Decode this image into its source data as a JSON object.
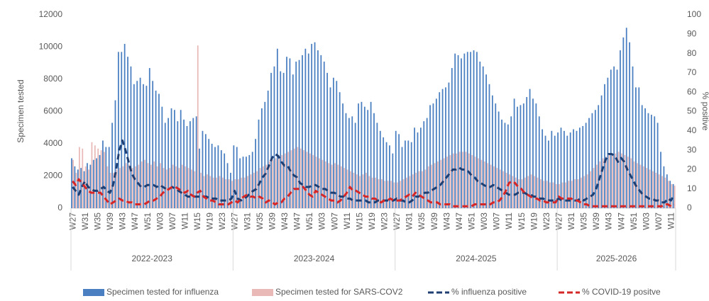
{
  "chart_data": {
    "type": "bar-line",
    "y_label": "Specimen tested",
    "y2_label": "% positive",
    "ylim": [
      0,
      12000
    ],
    "yticks": [
      0,
      2000,
      4000,
      6000,
      8000,
      10000,
      12000
    ],
    "y2lim": [
      0,
      100
    ],
    "y2ticks": [
      0,
      10,
      20,
      30,
      40,
      50,
      60,
      70,
      80,
      90,
      100
    ],
    "legend": "bottom",
    "groups": [
      "2022-2023",
      "2023-2024",
      "2024-2025",
      "2025-2026"
    ],
    "categories": [
      "W27",
      null,
      null,
      null,
      "W31",
      null,
      null,
      null,
      "W35",
      null,
      null,
      null,
      "W39",
      null,
      null,
      null,
      "W43",
      null,
      null,
      null,
      "W47",
      null,
      null,
      null,
      "W51",
      null,
      null,
      null,
      "W03",
      null,
      null,
      null,
      "W07",
      null,
      null,
      null,
      "W11",
      null,
      null,
      null,
      "W15",
      null,
      null,
      null,
      "W19",
      null,
      null,
      null,
      "W23",
      null,
      null,
      null,
      "W27",
      null,
      null,
      null,
      "W31",
      null,
      null,
      null,
      "W35",
      null,
      null,
      null,
      "W39",
      null,
      null,
      null,
      "W43",
      null,
      null,
      null,
      "W47",
      null,
      null,
      null,
      "W51",
      null,
      null,
      null,
      "W03",
      null,
      null,
      null,
      "W07",
      null,
      null,
      null,
      "W11",
      null,
      null,
      null,
      "W15",
      null,
      null,
      null,
      "W19",
      null,
      null,
      null,
      "W23",
      null,
      null,
      null,
      "W27",
      null,
      null,
      null,
      "W31",
      null,
      null,
      null,
      "W35",
      null,
      null,
      null,
      "W39",
      null,
      null,
      null,
      "W43",
      null,
      null,
      null,
      "W47",
      null,
      null,
      null,
      "W51",
      null,
      null,
      null,
      "W03",
      null,
      null,
      null,
      "W07",
      null,
      null,
      null,
      "W11",
      null,
      null,
      null,
      "W15",
      null,
      null,
      null,
      "W19",
      null,
      null,
      null,
      "W23",
      null,
      null,
      null,
      "W27",
      null,
      null,
      null,
      "W31",
      null,
      null,
      null,
      "W35",
      null,
      null,
      null,
      "W39",
      null,
      null,
      null,
      "W43",
      null,
      null,
      null,
      "W47",
      null,
      null,
      null,
      "W51",
      null,
      null,
      null,
      "W03",
      null,
      null,
      null,
      "W07",
      null,
      null,
      null,
      "W11",
      null
    ],
    "series": [
      {
        "name": "Specimen tested for influenza",
        "kind": "bar",
        "color": "#4a7fc1",
        "values": [
          3100,
          2600,
          2400,
          2500,
          2300,
          2800,
          2700,
          3000,
          3100,
          3300,
          4200,
          3800,
          3800,
          5300,
          6700,
          9700,
          9700,
          10200,
          9400,
          8800,
          7700,
          7900,
          8100,
          7700,
          7600,
          8700,
          7900,
          7300,
          7100,
          6300,
          5300,
          5600,
          6200,
          6100,
          5400,
          6100,
          5500,
          5100,
          5400,
          5600,
          5700,
          3700,
          4800,
          4600,
          4300,
          4000,
          3800,
          3900,
          3600,
          3400,
          2800,
          2200,
          3900,
          3800,
          3100,
          3200,
          3200,
          3300,
          3500,
          4300,
          5500,
          6200,
          6600,
          7300,
          8400,
          8800,
          9900,
          8500,
          8400,
          9400,
          9300,
          8300,
          9100,
          9200,
          9500,
          9900,
          9600,
          10200,
          10300,
          9800,
          9500,
          9100,
          8400,
          7500,
          8100,
          7900,
          7200,
          6500,
          5900,
          5600,
          5700,
          5300,
          6500,
          6600,
          6300,
          6100,
          6600,
          5900,
          5300,
          4800,
          4400,
          4100,
          3900,
          3400,
          4800,
          4600,
          3800,
          4200,
          4200,
          4100,
          5000,
          4700,
          5000,
          5400,
          5600,
          6400,
          6500,
          6800,
          7200,
          7400,
          7500,
          7800,
          8700,
          9600,
          9500,
          9300,
          9600,
          9700,
          9700,
          9800,
          9700,
          9100,
          8800,
          8300,
          7700,
          7000,
          6500,
          6000,
          5500,
          5300,
          5200,
          5700,
          6800,
          6300,
          6400,
          6500,
          6900,
          7400,
          6800,
          6500,
          5700,
          4900,
          4500,
          4200,
          4800,
          4500,
          4700,
          5000,
          4800,
          4500,
          4700,
          4900,
          4800,
          5000,
          5100,
          5300,
          5600,
          5900,
          6100,
          6400,
          7000,
          7700,
          8100,
          8600,
          8800,
          8600,
          9800,
          10600,
          11200,
          10300,
          8800,
          7500,
          7500,
          6400,
          6200,
          5900,
          5800,
          5700,
          5300,
          3500,
          2600,
          2100,
          1700,
          1500
        ]
      },
      {
        "name": "Specimen tested for SARS-COV2",
        "kind": "bar",
        "color": "#e8b9b7",
        "values": [
          3000,
          2200,
          3800,
          3700,
          2600,
          2400,
          4100,
          3900,
          3700,
          3600,
          3500,
          2600,
          2200,
          2200,
          2400,
          2500,
          2600,
          2800,
          2700,
          2500,
          2600,
          2700,
          2900,
          3000,
          2800,
          2700,
          2900,
          2600,
          2800,
          2500,
          2400,
          2500,
          2700,
          2600,
          2500,
          2700,
          2600,
          2500,
          2400,
          2300,
          10100,
          2200,
          2000,
          2100,
          2000,
          1900,
          1900,
          2000,
          1900,
          1800,
          1800,
          1700,
          1800,
          1800,
          1900,
          1900,
          2000,
          2100,
          2200,
          2300,
          2500,
          2600,
          2700,
          2900,
          3000,
          3100,
          3200,
          3300,
          3400,
          3500,
          3600,
          3700,
          3800,
          3700,
          3600,
          3500,
          3400,
          3300,
          3200,
          3100,
          3000,
          2900,
          2800,
          2700,
          2800,
          2700,
          2600,
          2500,
          2400,
          2300,
          2200,
          2100,
          2000,
          2100,
          2200,
          2000,
          1900,
          1900,
          1800,
          1800,
          1700,
          1700,
          1700,
          1600,
          1600,
          1700,
          1800,
          1900,
          2000,
          2100,
          2200,
          2300,
          2300,
          2400,
          2600,
          2700,
          2800,
          2900,
          3000,
          3100,
          3200,
          3300,
          3400,
          3400,
          3500,
          3500,
          3500,
          3400,
          3300,
          3200,
          3100,
          3000,
          2900,
          2800,
          2700,
          2600,
          2500,
          2400,
          2300,
          2200,
          2100,
          2000,
          1900,
          1800,
          1800,
          1900,
          2000,
          2100,
          2000,
          1900,
          1800,
          1700,
          1700,
          1600,
          1600,
          1500,
          1500,
          1600,
          1600,
          1700,
          1700,
          1800,
          1800,
          1900,
          2000,
          2100,
          2300,
          2500,
          2700,
          2900,
          3100,
          3200,
          3300,
          3400,
          3400,
          3500,
          3400,
          3300,
          3200,
          3100,
          2900,
          2800,
          2700,
          2600,
          2500,
          2400,
          2300,
          2200,
          2100,
          2000,
          1900,
          1700,
          1500,
          1400
        ]
      },
      {
        "name": "% influenza positive",
        "kind": "line",
        "axis": "y2",
        "color": "#1f3f73",
        "values": [
          11,
          9,
          7,
          11,
          14,
          11,
          10,
          9,
          9,
          10,
          11,
          9,
          8,
          12,
          20,
          30,
          35,
          30,
          24,
          18,
          15,
          13,
          11,
          11,
          12,
          12,
          12,
          11,
          12,
          11,
          10,
          10,
          11,
          10,
          9,
          8,
          7,
          6,
          6,
          6,
          6,
          6,
          6,
          6,
          5,
          5,
          5,
          4,
          4,
          4,
          4,
          5,
          9,
          5,
          4,
          5,
          6,
          8,
          9,
          10,
          13,
          16,
          18,
          22,
          26,
          28,
          27,
          24,
          22,
          22,
          19,
          17,
          16,
          13,
          12,
          11,
          11,
          12,
          12,
          11,
          10,
          10,
          9,
          8,
          8,
          7,
          6,
          6,
          5,
          5,
          4,
          4,
          4,
          4,
          4,
          3,
          3,
          3,
          4,
          4,
          4,
          4,
          4,
          4,
          5,
          4,
          4,
          3,
          3,
          4,
          6,
          6,
          7,
          8,
          8,
          9,
          10,
          11,
          12,
          14,
          16,
          18,
          20,
          20,
          21,
          20,
          20,
          19,
          17,
          16,
          14,
          13,
          12,
          11,
          11,
          12,
          11,
          10,
          9,
          8,
          7,
          7,
          7,
          8,
          8,
          8,
          7,
          7,
          6,
          6,
          5,
          5,
          4,
          4,
          4,
          4,
          5,
          4,
          4,
          4,
          4,
          4,
          4,
          5,
          4,
          5,
          6,
          7,
          10,
          15,
          20,
          25,
          28,
          28,
          27,
          24,
          26,
          24,
          20,
          17,
          14,
          11,
          9,
          7,
          6,
          5,
          5,
          4,
          4,
          3,
          3,
          5,
          4,
          7
        ]
      },
      {
        "name": "% COVID-19 positve",
        "kind": "line",
        "axis": "y2",
        "color": "#d62728",
        "values": [
          14,
          12,
          15,
          13,
          11,
          9,
          8,
          8,
          8,
          8,
          6,
          4,
          2,
          3,
          4,
          5,
          4,
          4,
          3,
          3,
          2,
          2,
          2,
          2,
          3,
          4,
          4,
          5,
          6,
          8,
          9,
          10,
          11,
          11,
          10,
          9,
          8,
          9,
          7,
          6,
          8,
          9,
          6,
          5,
          4,
          4,
          3,
          2,
          2,
          2,
          2,
          3,
          4,
          3,
          5,
          6,
          7,
          6,
          6,
          5,
          6,
          5,
          3,
          4,
          3,
          2,
          3,
          3,
          5,
          6,
          8,
          10,
          10,
          10,
          11,
          9,
          7,
          6,
          9,
          8,
          7,
          6,
          5,
          4,
          4,
          3,
          4,
          6,
          8,
          11,
          9,
          9,
          8,
          7,
          6,
          6,
          5,
          5,
          4,
          3,
          4,
          4,
          5,
          4,
          4,
          4,
          5,
          6,
          7,
          6,
          8,
          7,
          6,
          5,
          4,
          3,
          3,
          3,
          2,
          2,
          2,
          2,
          1,
          1,
          1,
          1,
          1,
          1,
          1,
          2,
          2,
          2,
          2,
          2,
          2,
          3,
          3,
          4,
          6,
          9,
          13,
          14,
          13,
          11,
          10,
          8,
          7,
          6,
          5,
          5,
          4,
          4,
          3,
          3,
          3,
          3,
          6,
          5,
          5,
          5,
          5,
          4,
          4,
          3,
          2,
          2,
          1,
          1,
          1,
          1,
          1,
          1,
          1,
          1,
          1,
          1,
          1,
          1,
          1,
          1,
          1,
          1,
          1,
          1,
          1,
          1,
          1,
          1,
          1,
          1,
          2,
          2,
          1,
          2
        ]
      }
    ]
  }
}
